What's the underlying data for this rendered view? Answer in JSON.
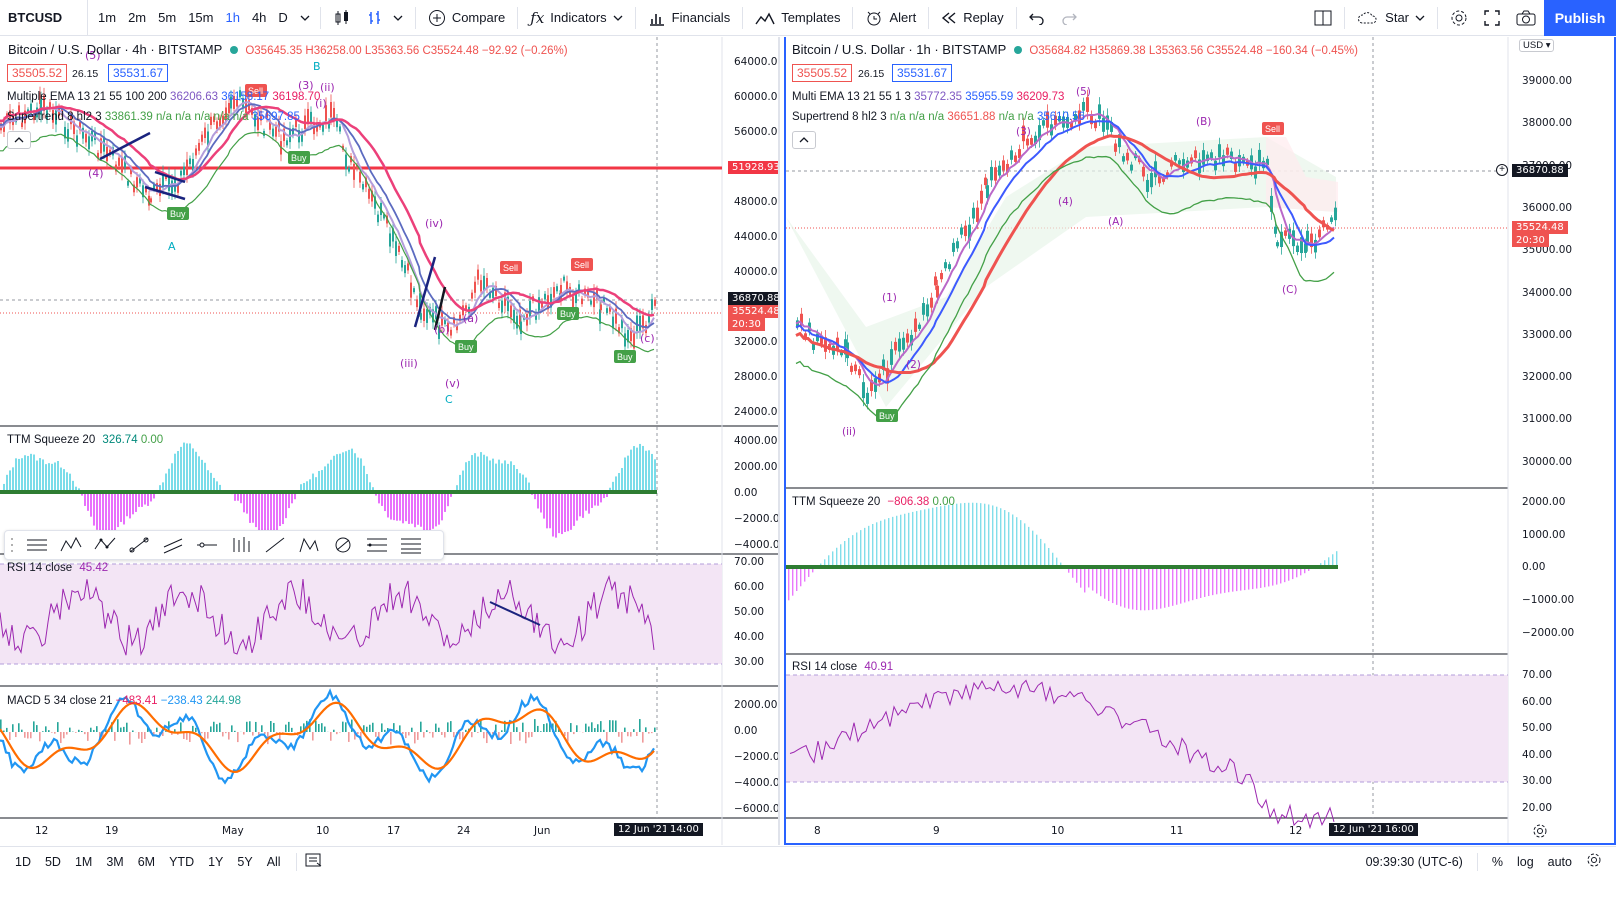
{
  "toolbar": {
    "symbol": "BTCUSD",
    "intervals": [
      "1m",
      "2m",
      "5m",
      "15m",
      "1h",
      "4h",
      "D"
    ],
    "active_interval": "1h",
    "compare_label": "Compare",
    "indicators_label": "Indicators",
    "financials_label": "Financials",
    "templates_label": "Templates",
    "alert_label": "Alert",
    "replay_label": "Replay",
    "star_label": "Star",
    "publish_label": "Publish"
  },
  "left": {
    "title": "Bitcoin / U.S. Dollar · 4h · BITSTAMP",
    "ohlc": "O35645.35 H36258.00 L35363.56 C35524.48 −92.92 (−0.26%)",
    "bid": "35505.52",
    "spread": "26.15",
    "ask": "35531.67",
    "ema_label": "Multiple EMA 13 21 55 100 200",
    "ema_values": [
      "36206.63",
      "36158.17",
      "36198.70"
    ],
    "st_label": "Supertrend 8 hl2 3",
    "st_values": "33861.39  n/a  n/a  n/a  n/a  n/a",
    "st_last": "35697.85",
    "y_ticks": [
      "64000.00",
      "60000.00",
      "56000.00",
      "52000.00",
      "48000.00",
      "44000.00",
      "40000.00",
      "36000.00",
      "32000.00",
      "28000.00",
      "24000.00"
    ],
    "hline_label": "51928.93",
    "last_price": "36870.88",
    "close_price": "35524.48",
    "countdown": "20:30",
    "ttm_label": "TTM Squeeze 20",
    "ttm_v1": "326.74",
    "ttm_v2": "0.00",
    "ttm_ticks": [
      "4000.00",
      "2000.00",
      "0.00",
      "−2000.00",
      "−4000.00"
    ],
    "rsi_label": "RSI 14 close",
    "rsi_value": "45.42",
    "rsi_ticks": [
      "70.00",
      "60.00",
      "50.00",
      "40.00",
      "30.00"
    ],
    "macd_label": "MACD 5 34 close 21",
    "macd_values": [
      "−483.41",
      "−238.43",
      "244.98"
    ],
    "macd_ticks": [
      "2000.00",
      "0.00",
      "−2000.00",
      "−4000.00",
      "−6000.00"
    ],
    "x_ticks": [
      "12",
      "19",
      "May",
      "10",
      "17",
      "24",
      "Jun"
    ],
    "x_cursor": "12 Jun '21",
    "x_cursor_time": "14:00",
    "wave_labels": [
      "(5)",
      "(4)",
      "(3)",
      "B",
      "(ii)",
      "(i)",
      "A",
      "C",
      "(iii)",
      "(v)",
      "(iv)",
      "(a)",
      "(b)",
      "(c)"
    ],
    "signals": [
      "Sell",
      "Buy",
      "Buy",
      "Sell",
      "Sell",
      "Buy",
      "Buy",
      "Buy"
    ]
  },
  "right": {
    "title": "Bitcoin / U.S. Dollar · 1h · BITSTAMP",
    "ohlc": "O35684.82 H35869.38 L35363.56 C35524.48 −160.34 (−0.45%)",
    "bid": "35505.52",
    "spread": "26.15",
    "ask": "35531.67",
    "ema_label": "Multi EMA 13 21 55 1 3",
    "ema_values": [
      "35772.35",
      "35955.59",
      "36209.73"
    ],
    "st_label": "Supertrend 8 hl2 3",
    "st_values": "n/a  n/a  n/a",
    "st_v2": "36651.88",
    "st_v3": "n/a  n/a",
    "st_last": "35610.56",
    "currency": "USD",
    "y_ticks": [
      "39000.00",
      "38000.00",
      "37000.00",
      "36000.00",
      "35000.00",
      "34000.00",
      "33000.00",
      "32000.00",
      "31000.00",
      "30000.00"
    ],
    "last_price": "36870.88",
    "close_price": "35524.48",
    "countdown": "20:30",
    "ttm_label": "TTM Squeeze 20",
    "ttm_v1": "−806.38",
    "ttm_v2": "0.00",
    "ttm_ticks": [
      "2000.00",
      "1000.00",
      "0.00",
      "−1000.00",
      "−2000.00"
    ],
    "rsi_label": "RSI 14 close",
    "rsi_value": "40.91",
    "rsi_ticks": [
      "70.00",
      "60.00",
      "50.00",
      "40.00",
      "30.00",
      "20.00"
    ],
    "x_ticks": [
      "8",
      "9",
      "10",
      "11",
      "12"
    ],
    "x_cursor": "12 Jun '21",
    "x_cursor_time": "16:00",
    "wave_labels": [
      "(5)",
      "(3)",
      "(B)",
      "(4)",
      "(A)",
      "(1)",
      "(2)",
      "(C)",
      "(ii)"
    ],
    "signals": [
      "Sell",
      "Buy"
    ]
  },
  "bottom": {
    "ranges": [
      "1D",
      "5D",
      "1M",
      "3M",
      "6M",
      "YTD",
      "1Y",
      "5Y",
      "All"
    ],
    "clock": "09:39:30 (UTC-6)",
    "percent": "%",
    "log": "log",
    "auto": "auto"
  },
  "colors": {
    "accent": "#2962ff",
    "sell": "#ef5350",
    "buy": "#43a047",
    "rsi_fill": "#f3e5f5",
    "rsi_line": "#9c27b0"
  }
}
